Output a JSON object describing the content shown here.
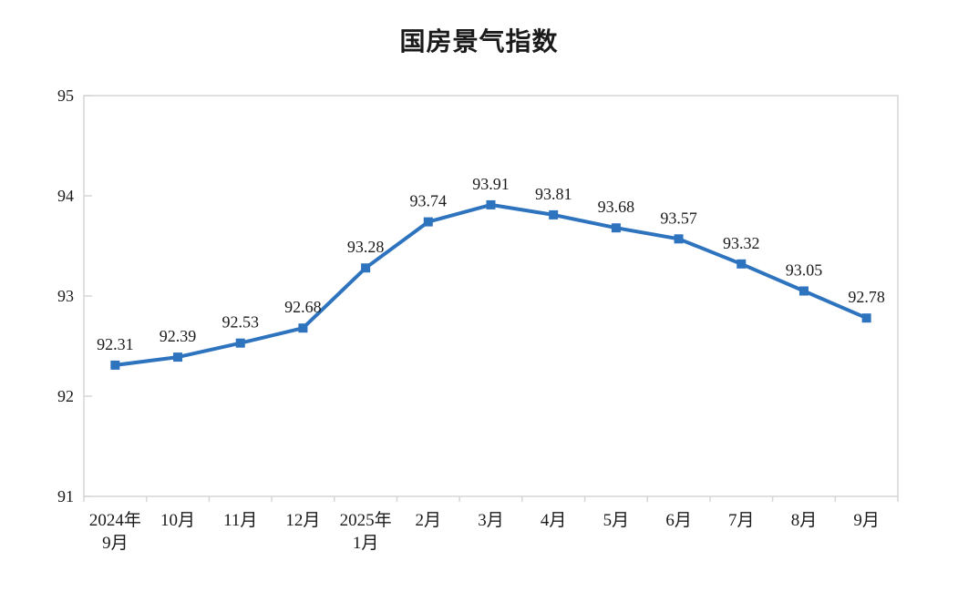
{
  "chart_data": {
    "type": "line",
    "title": "国房景气指数",
    "categories": [
      "2024年\n9月",
      "10月",
      "11月",
      "12月",
      "2025年\n1月",
      "2月",
      "3月",
      "4月",
      "5月",
      "6月",
      "7月",
      "8月",
      "9月"
    ],
    "series": [
      {
        "name": "国房景气指数",
        "values": [
          92.31,
          92.39,
          92.53,
          92.68,
          93.28,
          93.74,
          93.91,
          93.81,
          93.68,
          93.57,
          93.32,
          93.05,
          92.78
        ]
      }
    ],
    "data_labels": [
      "92.31",
      "92.39",
      "92.53",
      "92.68",
      "93.28",
      "93.74",
      "93.91",
      "93.81",
      "93.68",
      "93.57",
      "93.32",
      "93.05",
      "92.78"
    ],
    "ylabel": "",
    "xlabel": "",
    "ylim": [
      91,
      95
    ],
    "yticks": [
      91,
      92,
      93,
      94,
      95
    ],
    "grid": false,
    "legend": "none",
    "marker": "square",
    "colors": {
      "line": "#2E73BE",
      "marker": "#2E73BE",
      "axis": "#D6D6D6",
      "text": "#1A1A1A"
    }
  }
}
